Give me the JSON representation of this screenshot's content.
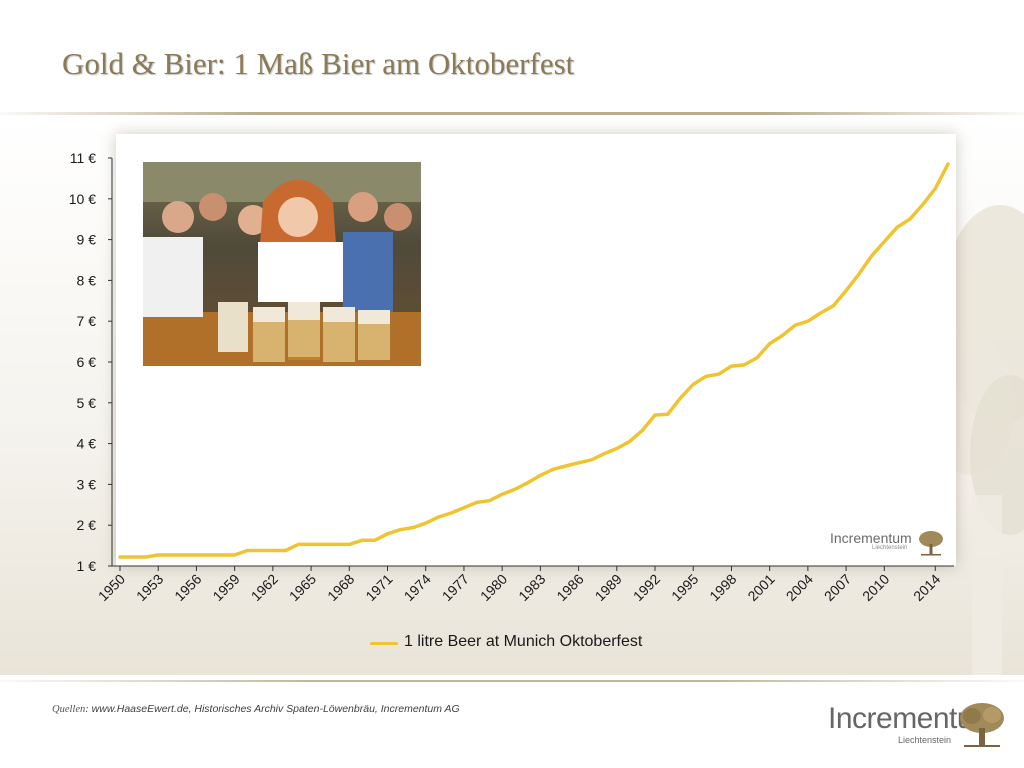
{
  "slide": {
    "title": "Gold & Bier: 1 Maß Bier am Oktoberfest",
    "sources_label": "Quellen:",
    "sources_text": "www.HaaseEwert.de, Historisches Archiv Spaten-Löwenbräu, Incrementum AG"
  },
  "brand": {
    "name": "Incrementum",
    "subtitle": "Liechtenstein"
  },
  "watermark": {
    "name": "Incrementum",
    "subtitle": "Liechtenstein"
  },
  "colors": {
    "line": "#f0c430",
    "title": "#8a7a55",
    "brand": "#666666"
  },
  "photo": {
    "description_icon": "oktoberfest-photo"
  },
  "chart_data": {
    "type": "line",
    "title": "",
    "xlabel": "",
    "ylabel": "",
    "ylim": [
      1,
      11
    ],
    "xlim": [
      1950,
      2015
    ],
    "grid": false,
    "legend_position": "bottom",
    "y_ticks": [
      1,
      2,
      3,
      4,
      5,
      6,
      7,
      8,
      9,
      10,
      11
    ],
    "y_tick_labels": [
      "1 €",
      "2 €",
      "3 €",
      "4 €",
      "5 €",
      "6 €",
      "7 €",
      "8 €",
      "9 €",
      "10 €",
      "11 €"
    ],
    "x_ticks": [
      1950,
      1953,
      1956,
      1959,
      1962,
      1965,
      1968,
      1971,
      1974,
      1977,
      1980,
      1983,
      1986,
      1989,
      1992,
      1995,
      1998,
      2001,
      2004,
      2007,
      2010,
      2014
    ],
    "x_tick_labels": [
      "1950",
      "1953",
      "1956",
      "1959",
      "1962",
      "1965",
      "1968",
      "1971",
      "1974",
      "1977",
      "1980",
      "1983",
      "1986",
      "1989",
      "1992",
      "1995",
      "1998",
      "2001",
      "2004",
      "2007",
      "2010",
      "2014"
    ],
    "series": [
      {
        "name": "1 litre Beer at Munich Oktoberfest",
        "x": [
          1950,
          1951,
          1952,
          1953,
          1954,
          1955,
          1956,
          1957,
          1958,
          1959,
          1960,
          1961,
          1962,
          1963,
          1964,
          1965,
          1966,
          1967,
          1968,
          1969,
          1970,
          1971,
          1972,
          1973,
          1974,
          1975,
          1976,
          1977,
          1978,
          1979,
          1980,
          1981,
          1982,
          1983,
          1984,
          1985,
          1986,
          1987,
          1988,
          1989,
          1990,
          1991,
          1992,
          1993,
          1994,
          1995,
          1996,
          1997,
          1998,
          1999,
          2000,
          2001,
          2002,
          2003,
          2004,
          2005,
          2006,
          2007,
          2008,
          2009,
          2010,
          2011,
          2012,
          2013,
          2014,
          2015
        ],
        "values": [
          1.22,
          1.22,
          1.22,
          1.27,
          1.27,
          1.27,
          1.27,
          1.27,
          1.27,
          1.27,
          1.38,
          1.38,
          1.38,
          1.38,
          1.53,
          1.53,
          1.53,
          1.53,
          1.53,
          1.63,
          1.63,
          1.79,
          1.89,
          1.94,
          2.05,
          2.2,
          2.3,
          2.43,
          2.56,
          2.6,
          2.76,
          2.88,
          3.04,
          3.22,
          3.37,
          3.45,
          3.53,
          3.6,
          3.75,
          3.88,
          4.05,
          4.32,
          4.7,
          4.72,
          5.12,
          5.45,
          5.65,
          5.7,
          5.9,
          5.93,
          6.1,
          6.45,
          6.65,
          6.9,
          7.0,
          7.2,
          7.38,
          7.75,
          8.15,
          8.6,
          8.95,
          9.3,
          9.5,
          9.85,
          10.25,
          10.85
        ]
      }
    ]
  }
}
